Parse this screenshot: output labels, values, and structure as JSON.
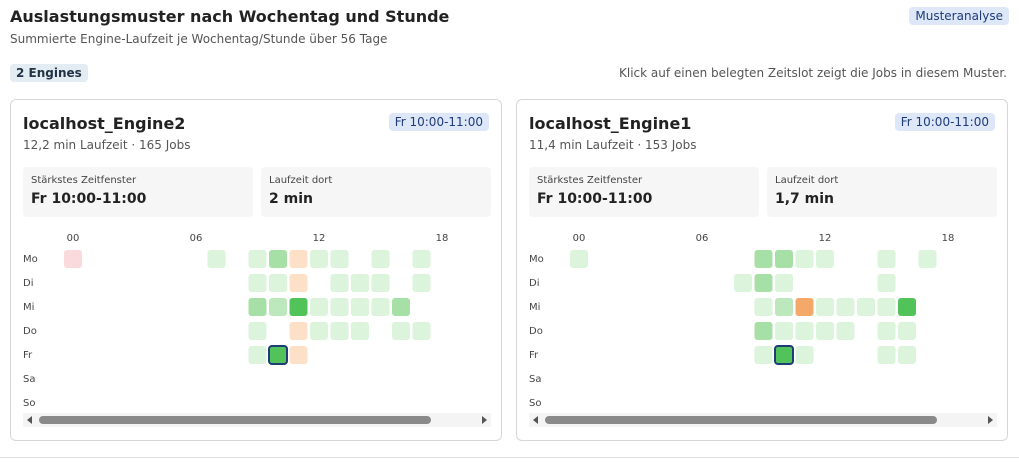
{
  "header": {
    "title": "Auslastungsmuster nach Wochentag und Stunde",
    "subtitle": "Summierte Engine-Laufzeit je Wochentag/Stunde über 56 Tage",
    "badge": "Musteranalyse"
  },
  "toolbar": {
    "count": "2 Engines",
    "hint": "Klick auf einen belegten Zeitslot zeigt die Jobs in diesem Muster."
  },
  "engines": [
    {
      "name": "localhost_Engine2",
      "badge": "Fr 10:00-11:00",
      "summary": "12,2 min Laufzeit · 165 Jobs",
      "stats": [
        {
          "label": "Stärkstes Zeitfenster",
          "value": "Fr 10:00-11:00"
        },
        {
          "label": "Laufzeit dort",
          "value": "2 min"
        }
      ],
      "hour_labels": [
        {
          "hour": 0,
          "label": "00"
        },
        {
          "hour": 6,
          "label": "06"
        },
        {
          "hour": 12,
          "label": "12"
        },
        {
          "hour": 18,
          "label": "18"
        }
      ],
      "selected": {
        "row": 4,
        "hour": 10
      },
      "rows": [
        {
          "label": "Mo",
          "cells": [
            "#fadadd",
            null,
            null,
            null,
            null,
            null,
            null,
            "#dcf3dc",
            null,
            "#dcf3dc",
            "#a6e0a6",
            "#fde0c8",
            "#dcf3dc",
            "#dcf3dc",
            null,
            "#dcf3dc",
            null,
            "#dcf3dc",
            null,
            null,
            null,
            null,
            null,
            null
          ]
        },
        {
          "label": "Di",
          "cells": [
            null,
            null,
            null,
            null,
            null,
            null,
            null,
            null,
            null,
            "#dcf3dc",
            "#dcf3dc",
            "#fde0c8",
            null,
            "#dcf3dc",
            "#dcf3dc",
            "#dcf3dc",
            null,
            "#dcf3dc",
            null,
            null,
            null,
            null,
            null,
            null
          ]
        },
        {
          "label": "Mi",
          "cells": [
            null,
            null,
            null,
            null,
            null,
            null,
            null,
            null,
            null,
            "#a6e0a6",
            "#bde8bd",
            "#52c35a",
            "#dcf3dc",
            "#dcf3dc",
            "#dcf3dc",
            "#dcf3dc",
            "#a6e0a6",
            null,
            null,
            null,
            null,
            null,
            null,
            null
          ]
        },
        {
          "label": "Do",
          "cells": [
            null,
            null,
            null,
            null,
            null,
            null,
            null,
            null,
            null,
            "#dcf3dc",
            null,
            "#fde0c8",
            "#dcf3dc",
            "#dcf3dc",
            "#dcf3dc",
            null,
            "#dcf3dc",
            "#dcf3dc",
            null,
            null,
            null,
            null,
            null,
            null
          ]
        },
        {
          "label": "Fr",
          "cells": [
            null,
            null,
            null,
            null,
            null,
            null,
            null,
            null,
            null,
            "#dcf3dc",
            "#52c35a",
            "#fde0c8",
            null,
            null,
            null,
            null,
            null,
            null,
            null,
            null,
            null,
            null,
            null,
            null
          ]
        },
        {
          "label": "Sa",
          "cells": [
            null,
            null,
            null,
            null,
            null,
            null,
            null,
            null,
            null,
            null,
            null,
            null,
            null,
            null,
            null,
            null,
            null,
            null,
            null,
            null,
            null,
            null,
            null,
            null
          ]
        },
        {
          "label": "So",
          "cells": [
            null,
            null,
            null,
            null,
            null,
            null,
            null,
            null,
            null,
            null,
            null,
            null,
            null,
            null,
            null,
            null,
            null,
            null,
            null,
            null,
            null,
            null,
            null,
            null
          ]
        }
      ]
    },
    {
      "name": "localhost_Engine1",
      "badge": "Fr 10:00-11:00",
      "summary": "11,4 min Laufzeit · 153 Jobs",
      "stats": [
        {
          "label": "Stärkstes Zeitfenster",
          "value": "Fr 10:00-11:00"
        },
        {
          "label": "Laufzeit dort",
          "value": "1,7 min"
        }
      ],
      "hour_labels": [
        {
          "hour": 0,
          "label": "00"
        },
        {
          "hour": 6,
          "label": "06"
        },
        {
          "hour": 12,
          "label": "12"
        },
        {
          "hour": 18,
          "label": "18"
        }
      ],
      "selected": {
        "row": 4,
        "hour": 10
      },
      "rows": [
        {
          "label": "Mo",
          "cells": [
            "#dcf3dc",
            null,
            null,
            null,
            null,
            null,
            null,
            null,
            null,
            "#a6e0a6",
            "#a6e0a6",
            "#dcf3dc",
            "#dcf3dc",
            null,
            null,
            "#dcf3dc",
            null,
            "#dcf3dc",
            null,
            null,
            null,
            null,
            null,
            null
          ]
        },
        {
          "label": "Di",
          "cells": [
            null,
            null,
            null,
            null,
            null,
            null,
            null,
            null,
            "#dcf3dc",
            "#a6e0a6",
            "#dcf3dc",
            null,
            null,
            null,
            null,
            "#dcf3dc",
            null,
            null,
            null,
            null,
            null,
            null,
            null,
            null
          ]
        },
        {
          "label": "Mi",
          "cells": [
            null,
            null,
            null,
            null,
            null,
            null,
            null,
            null,
            null,
            "#dcf3dc",
            "#bde8bd",
            "#f4a96a",
            "#dcf3dc",
            "#dcf3dc",
            "#dcf3dc",
            "#dcf3dc",
            "#52c35a",
            null,
            null,
            null,
            null,
            null,
            null,
            null
          ]
        },
        {
          "label": "Do",
          "cells": [
            null,
            null,
            null,
            null,
            null,
            null,
            null,
            null,
            null,
            "#a6e0a6",
            "#dcf3dc",
            "#dcf3dc",
            "#dcf3dc",
            "#dcf3dc",
            null,
            "#dcf3dc",
            "#dcf3dc",
            null,
            null,
            null,
            null,
            null,
            null,
            null
          ]
        },
        {
          "label": "Fr",
          "cells": [
            null,
            null,
            null,
            null,
            null,
            null,
            null,
            null,
            null,
            "#dcf3dc",
            "#52c35a",
            "#dcf3dc",
            null,
            null,
            null,
            "#dcf3dc",
            "#dcf3dc",
            null,
            null,
            null,
            null,
            null,
            null,
            null
          ]
        },
        {
          "label": "Sa",
          "cells": [
            null,
            null,
            null,
            null,
            null,
            null,
            null,
            null,
            null,
            null,
            null,
            null,
            null,
            null,
            null,
            null,
            null,
            null,
            null,
            null,
            null,
            null,
            null,
            null
          ]
        },
        {
          "label": "So",
          "cells": [
            null,
            null,
            null,
            null,
            null,
            null,
            null,
            null,
            null,
            null,
            null,
            null,
            null,
            null,
            null,
            null,
            null,
            null,
            null,
            null,
            null,
            null,
            null,
            null
          ]
        }
      ]
    }
  ]
}
